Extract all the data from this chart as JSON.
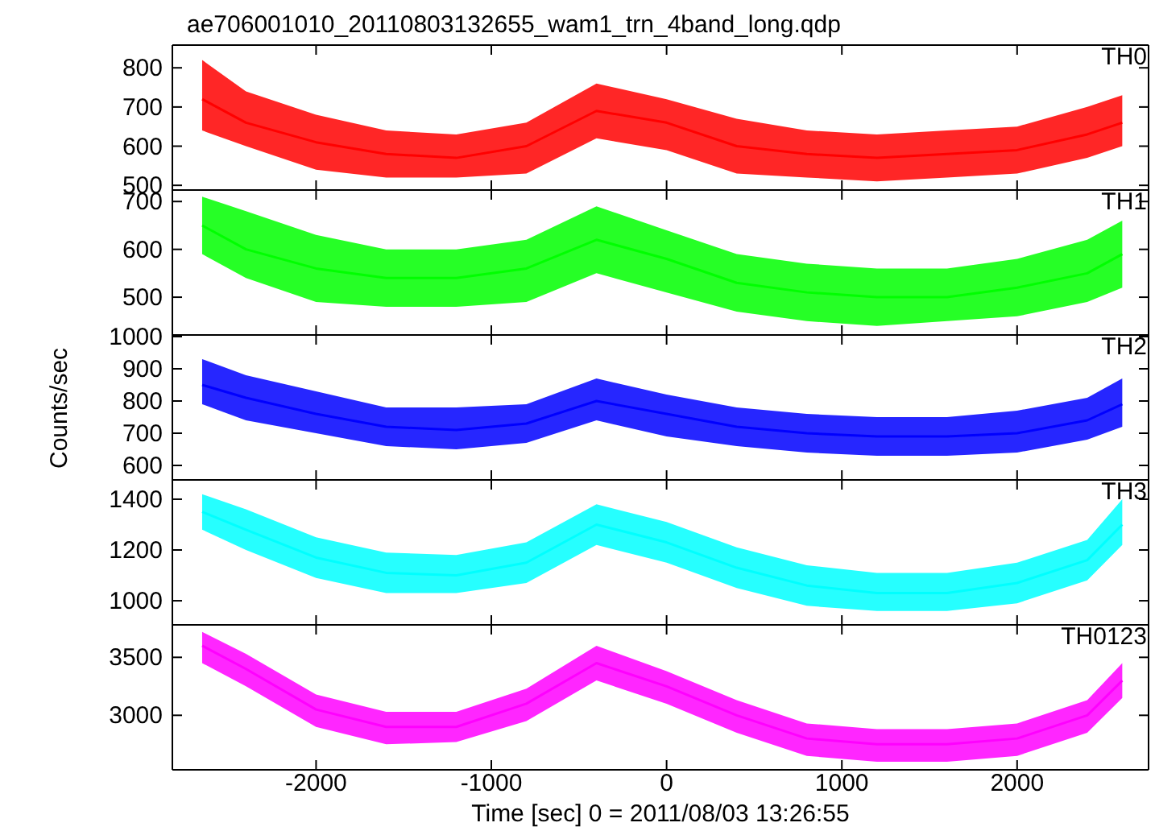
{
  "chart_data": [
    {
      "type": "line",
      "title": "ae706001010_20110803132655_wam1_trn_4band_long.qdp",
      "x": [
        -2650,
        -2400,
        -2000,
        -1600,
        -1200,
        -800,
        -400,
        0,
        400,
        800,
        1200,
        1600,
        2000,
        2400,
        2600
      ],
      "xlim": [
        -2820,
        2750
      ],
      "xticks": [
        -2000,
        -1000,
        0,
        1000,
        2000
      ],
      "ylim": [
        488,
        858
      ],
      "yticks": [
        500,
        600,
        700,
        800
      ],
      "tick_labels": "y",
      "legend": false,
      "series": [
        {
          "name": "TH0",
          "color": "#ff0000",
          "values": [
            720,
            660,
            610,
            580,
            570,
            600,
            690,
            660,
            600,
            580,
            570,
            580,
            590,
            630,
            660
          ],
          "lower": [
            640,
            600,
            540,
            520,
            520,
            530,
            620,
            590,
            530,
            520,
            510,
            520,
            530,
            570,
            600
          ],
          "upper": [
            820,
            740,
            680,
            640,
            630,
            660,
            760,
            720,
            670,
            640,
            630,
            640,
            650,
            700,
            730
          ]
        }
      ]
    },
    {
      "type": "line",
      "x": [
        -2650,
        -2400,
        -2000,
        -1600,
        -1200,
        -800,
        -400,
        0,
        400,
        800,
        1200,
        1600,
        2000,
        2400,
        2600
      ],
      "xlim": [
        -2820,
        2750
      ],
      "xticks": [
        -2000,
        -1000,
        0,
        1000,
        2000
      ],
      "ylim": [
        421,
        724
      ],
      "yticks": [
        500,
        600,
        700
      ],
      "tick_labels": "y",
      "legend": false,
      "series": [
        {
          "name": "TH1",
          "color": "#00ff00",
          "values": [
            650,
            600,
            560,
            540,
            540,
            560,
            620,
            580,
            530,
            510,
            500,
            500,
            520,
            550,
            590
          ],
          "lower": [
            590,
            540,
            490,
            480,
            480,
            490,
            550,
            510,
            470,
            450,
            440,
            450,
            460,
            490,
            520
          ],
          "upper": [
            710,
            680,
            630,
            600,
            600,
            620,
            690,
            640,
            590,
            570,
            560,
            560,
            580,
            620,
            660
          ]
        }
      ]
    },
    {
      "type": "line",
      "ylabel": "Counts/sec",
      "x": [
        -2650,
        -2400,
        -2000,
        -1600,
        -1200,
        -800,
        -400,
        0,
        400,
        800,
        1200,
        1600,
        2000,
        2400,
        2600
      ],
      "xlim": [
        -2820,
        2750
      ],
      "xticks": [
        -2000,
        -1000,
        0,
        1000,
        2000
      ],
      "ylim": [
        555,
        1005
      ],
      "yticks": [
        600,
        700,
        800,
        900,
        1000
      ],
      "tick_labels": "y",
      "legend": false,
      "series": [
        {
          "name": "TH2",
          "color": "#0000ff",
          "values": [
            850,
            810,
            760,
            720,
            710,
            730,
            800,
            760,
            720,
            700,
            690,
            690,
            700,
            740,
            790
          ],
          "lower": [
            790,
            740,
            700,
            660,
            650,
            670,
            740,
            690,
            660,
            640,
            630,
            630,
            640,
            680,
            720
          ],
          "upper": [
            930,
            880,
            830,
            780,
            780,
            790,
            870,
            820,
            780,
            760,
            750,
            750,
            770,
            810,
            870
          ]
        }
      ]
    },
    {
      "type": "line",
      "x": [
        -2650,
        -2400,
        -2000,
        -1600,
        -1200,
        -800,
        -400,
        0,
        400,
        800,
        1200,
        1600,
        2000,
        2400,
        2600
      ],
      "xlim": [
        -2820,
        2750
      ],
      "xticks": [
        -2000,
        -1000,
        0,
        1000,
        2000
      ],
      "ylim": [
        905,
        1476
      ],
      "yticks": [
        1000,
        1200,
        1400
      ],
      "tick_labels": "y",
      "legend": false,
      "series": [
        {
          "name": "TH3",
          "color": "#00ffff",
          "values": [
            1350,
            1280,
            1170,
            1110,
            1100,
            1150,
            1300,
            1230,
            1130,
            1060,
            1030,
            1030,
            1070,
            1160,
            1300
          ],
          "lower": [
            1280,
            1200,
            1090,
            1030,
            1030,
            1070,
            1220,
            1150,
            1050,
            980,
            960,
            960,
            990,
            1080,
            1220
          ],
          "upper": [
            1420,
            1360,
            1250,
            1190,
            1180,
            1230,
            1380,
            1310,
            1210,
            1140,
            1110,
            1110,
            1150,
            1240,
            1400
          ]
        }
      ]
    },
    {
      "type": "line",
      "xlabel": "Time [sec] 0 = 2011/08/03 13:26:55",
      "x": [
        -2650,
        -2400,
        -2000,
        -1600,
        -1200,
        -800,
        -400,
        0,
        400,
        800,
        1200,
        1600,
        2000,
        2400,
        2600
      ],
      "xlim": [
        -2820,
        2750
      ],
      "xticks": [
        -2000,
        -1000,
        0,
        1000,
        2000
      ],
      "ylim": [
        2530,
        3780
      ],
      "yticks": [
        3000,
        3500
      ],
      "legend": false,
      "series": [
        {
          "name": "TH0123",
          "color": "#ff00ff",
          "values": [
            3600,
            3400,
            3050,
            2900,
            2900,
            3100,
            3450,
            3250,
            3000,
            2800,
            2750,
            2750,
            2800,
            3000,
            3300
          ],
          "lower": [
            3450,
            3250,
            2900,
            2750,
            2770,
            2950,
            3300,
            3100,
            2850,
            2650,
            2600,
            2600,
            2650,
            2850,
            3150
          ],
          "upper": [
            3720,
            3530,
            3180,
            3030,
            3030,
            3230,
            3600,
            3380,
            3130,
            2930,
            2880,
            2880,
            2930,
            3130,
            3450
          ]
        }
      ]
    }
  ]
}
